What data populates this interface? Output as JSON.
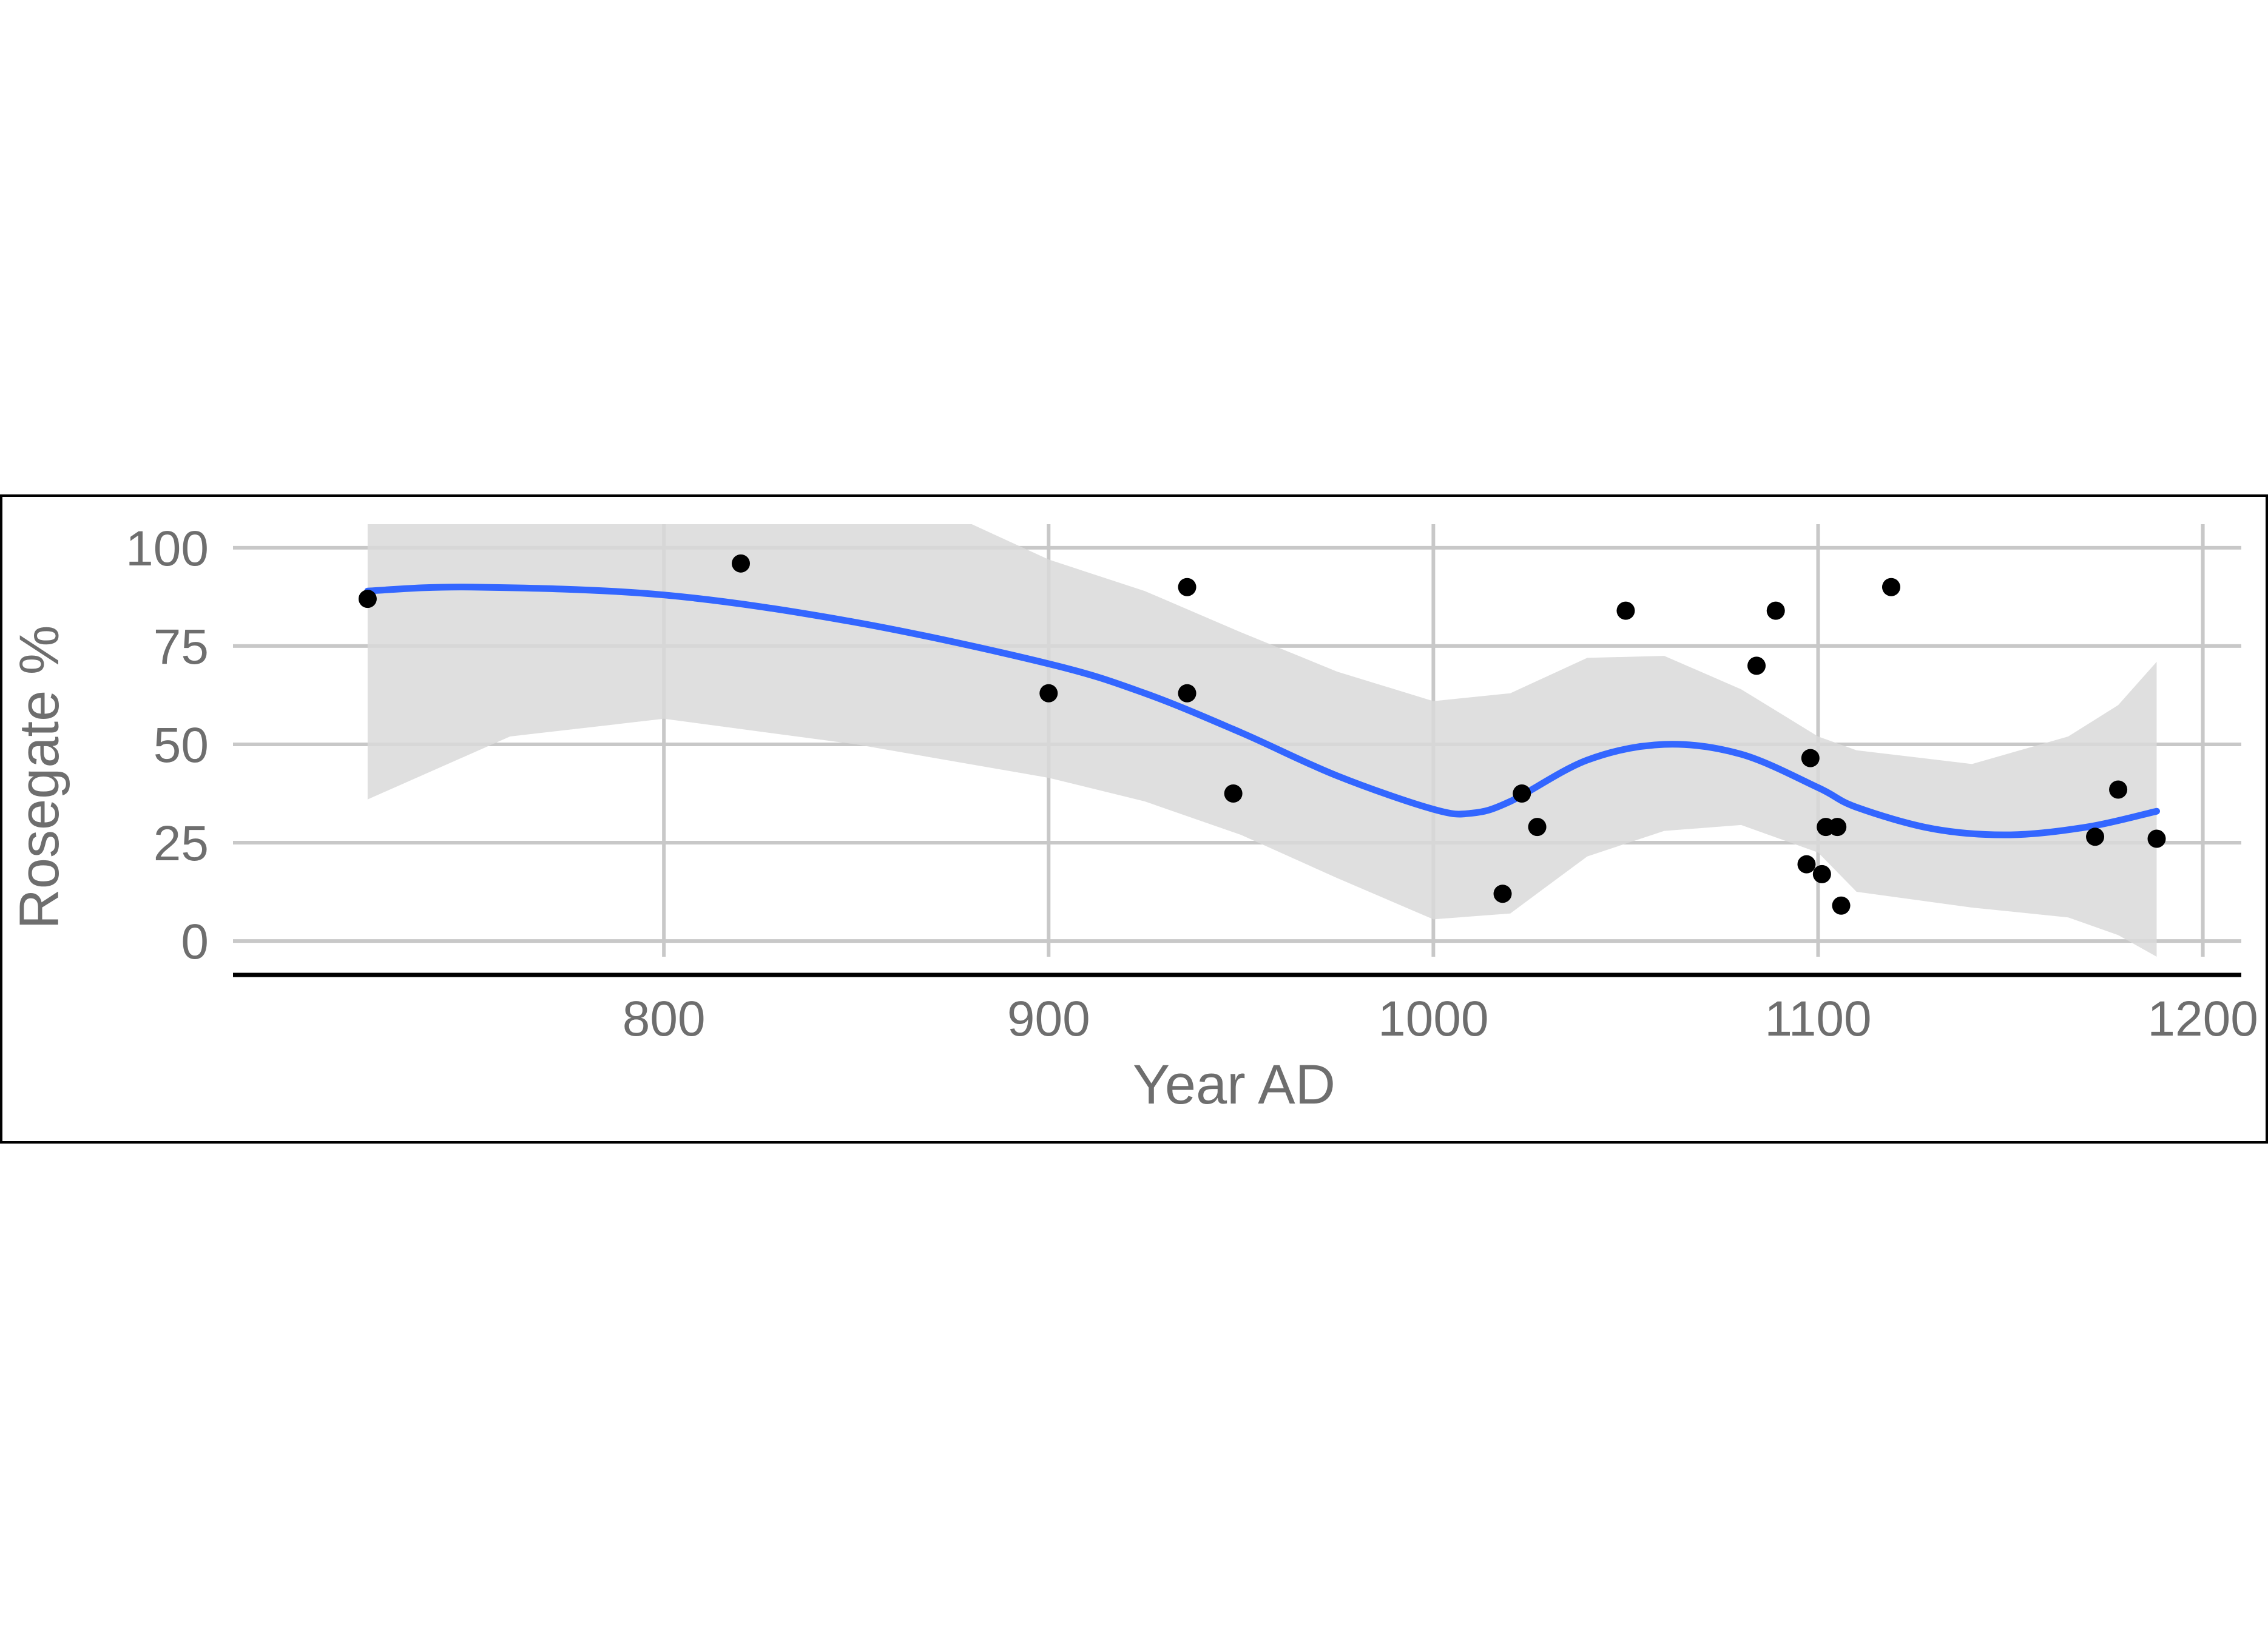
{
  "chart_data": {
    "type": "scatter",
    "xlabel": "Year AD",
    "ylabel": "Rosegate %",
    "xlim": [
      688,
      1210
    ],
    "ylim": [
      -4,
      106
    ],
    "x_ticks": [
      800,
      900,
      1000,
      1100,
      1200
    ],
    "y_ticks": [
      0,
      25,
      50,
      75,
      100
    ],
    "x_tick_labels": [
      "800",
      "900",
      "1000",
      "1100",
      "1200"
    ],
    "y_tick_labels": [
      "0",
      "25",
      "50",
      "75",
      "100"
    ],
    "grid": true,
    "points": [
      {
        "x": 723,
        "y": 87
      },
      {
        "x": 820,
        "y": 96
      },
      {
        "x": 900,
        "y": 63
      },
      {
        "x": 936,
        "y": 90
      },
      {
        "x": 936,
        "y": 63
      },
      {
        "x": 948,
        "y": 37.5
      },
      {
        "x": 1018,
        "y": 12
      },
      {
        "x": 1023,
        "y": 37.5
      },
      {
        "x": 1027,
        "y": 29
      },
      {
        "x": 1050,
        "y": 84
      },
      {
        "x": 1084,
        "y": 70
      },
      {
        "x": 1089,
        "y": 84
      },
      {
        "x": 1097,
        "y": 19.5
      },
      {
        "x": 1098,
        "y": 46.5
      },
      {
        "x": 1101,
        "y": 17
      },
      {
        "x": 1102,
        "y": 29
      },
      {
        "x": 1105,
        "y": 29
      },
      {
        "x": 1106,
        "y": 9
      },
      {
        "x": 1119,
        "y": 90
      },
      {
        "x": 1172,
        "y": 26.5
      },
      {
        "x": 1178,
        "y": 38.5
      },
      {
        "x": 1188,
        "y": 26
      }
    ],
    "smooth_line": {
      "color": "#3366ff",
      "points": [
        [
          723,
          89
        ],
        [
          750,
          90
        ],
        [
          800,
          88
        ],
        [
          850,
          81
        ],
        [
          900,
          70.5
        ],
        [
          925,
          63
        ],
        [
          950,
          53
        ],
        [
          975,
          42
        ],
        [
          1000,
          33.5
        ],
        [
          1010,
          32.5
        ],
        [
          1020,
          35.5
        ],
        [
          1040,
          46
        ],
        [
          1060,
          50
        ],
        [
          1080,
          47.5
        ],
        [
          1100,
          39
        ],
        [
          1110,
          34
        ],
        [
          1130,
          28.5
        ],
        [
          1150,
          27
        ],
        [
          1170,
          29
        ],
        [
          1188,
          33
        ]
      ]
    },
    "confidence_band": {
      "color": "#d9d9d9",
      "upper": [
        [
          723,
          106
        ],
        [
          800,
          106
        ],
        [
          880,
          106
        ],
        [
          900,
          97
        ],
        [
          925,
          89
        ],
        [
          950,
          78.5
        ],
        [
          975,
          68.5
        ],
        [
          1000,
          61
        ],
        [
          1020,
          63
        ],
        [
          1040,
          72
        ],
        [
          1060,
          72.5
        ],
        [
          1080,
          64
        ],
        [
          1100,
          52
        ],
        [
          1110,
          48.5
        ],
        [
          1140,
          45
        ],
        [
          1165,
          52
        ],
        [
          1178,
          60
        ],
        [
          1188,
          71
        ]
      ],
      "lower": [
        [
          1188,
          -4
        ],
        [
          1178,
          1.5
        ],
        [
          1165,
          6
        ],
        [
          1140,
          8.5
        ],
        [
          1110,
          12.5
        ],
        [
          1100,
          22.5
        ],
        [
          1080,
          29.5
        ],
        [
          1060,
          28
        ],
        [
          1040,
          21.5
        ],
        [
          1020,
          7
        ],
        [
          1000,
          5.5
        ],
        [
          975,
          16
        ],
        [
          950,
          27
        ],
        [
          925,
          35.5
        ],
        [
          900,
          41.5
        ],
        [
          850,
          50
        ],
        [
          800,
          56.5
        ],
        [
          760,
          52
        ],
        [
          723,
          36
        ]
      ]
    },
    "point_color": "#000000",
    "axis_color": "#000000",
    "grid_color": "#c8c8c8"
  }
}
